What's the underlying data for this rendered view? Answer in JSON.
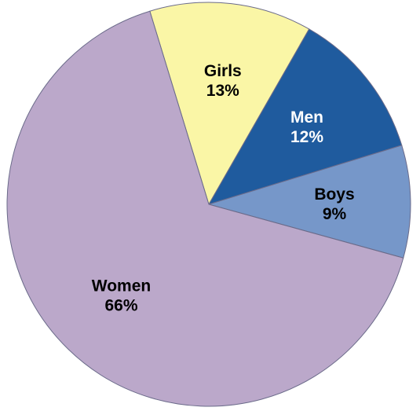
{
  "chart_data": {
    "type": "pie",
    "title": "",
    "start_angle_deg": -107,
    "direction": "clockwise",
    "slices": [
      {
        "label": "Girls",
        "value": 13,
        "value_label": "13%",
        "color": "#FAF6A6",
        "text_color": "#000000"
      },
      {
        "label": "Men",
        "value": 12,
        "value_label": "12%",
        "color": "#1F5B9E",
        "text_color": "#FFFFFF"
      },
      {
        "label": "Boys",
        "value": 9,
        "value_label": "9%",
        "color": "#7697C9",
        "text_color": "#000000"
      },
      {
        "label": "Women",
        "value": 66,
        "value_label": "66%",
        "color": "#BBA8CA",
        "text_color": "#000000"
      }
    ]
  }
}
